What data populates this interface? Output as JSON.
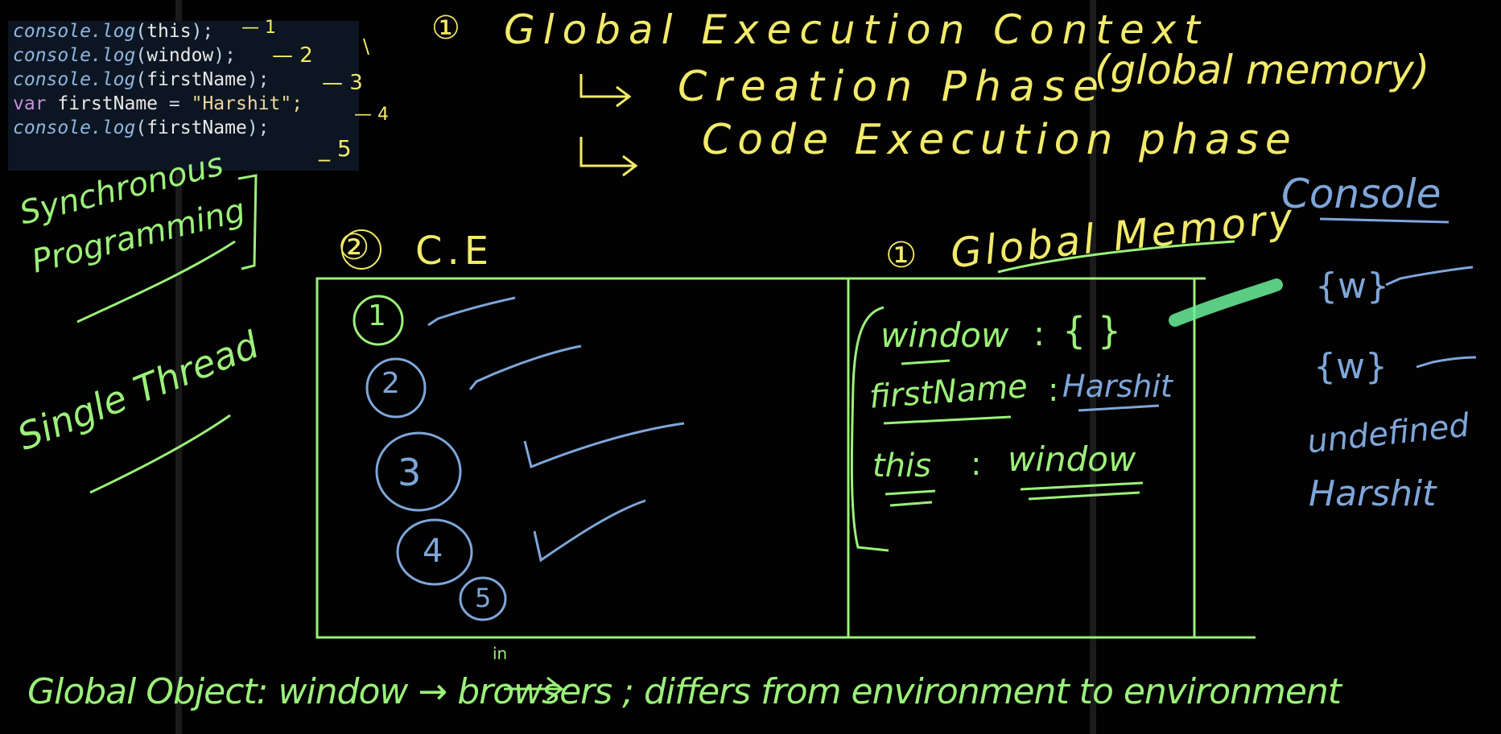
{
  "code": {
    "lines": [
      {
        "fn": "console.log",
        "open": "(",
        "arg": "this",
        "close": ");",
        "note": "— 1"
      },
      {
        "fn": "console.log",
        "open": "(",
        "arg": "window",
        "close": ");",
        "note": "— 2"
      },
      {
        "fn": "console.log",
        "open": "(",
        "arg": "firstName",
        "close": ");",
        "note": "— 3"
      },
      {
        "kw": "var",
        "id": "firstName",
        "eq": "=",
        "str": "\"Harshit\";",
        "note": "— 4"
      },
      {
        "fn": "console.log",
        "open": "(",
        "arg": "firstName",
        "close": ");",
        "note": "_ 5"
      }
    ]
  },
  "heading": {
    "num": "①",
    "title": "Global Execution Context",
    "phase1": "Creation Phase",
    "phase1_note": "(global memory)",
    "phase2": "Code Execution phase"
  },
  "left_notes": {
    "sync": "Synchronous Programming",
    "thread": "Single Thread"
  },
  "ce": {
    "num": "②",
    "label": "C.E",
    "steps": [
      "1",
      "2",
      "3",
      "4",
      "5"
    ]
  },
  "memory": {
    "num": "①",
    "label": "Global Memory",
    "rows": [
      {
        "key": "window",
        "sep": ":",
        "value": "{ }"
      },
      {
        "key": "firstName",
        "sep": ":",
        "value": "Harshit"
      },
      {
        "key": "this",
        "sep": ":",
        "value": "window"
      }
    ]
  },
  "console": {
    "label": "Console",
    "outputs": [
      "{w}",
      "{w}",
      "undefined",
      "Harshit"
    ]
  },
  "footer": "Global Object: window → browsers ; differs from environment to environment",
  "footer_note": "in",
  "colors": {
    "yellow": "#f2ea6a",
    "green": "#9cf07a",
    "blue": "#7fa6d9",
    "bg": "#020202"
  }
}
